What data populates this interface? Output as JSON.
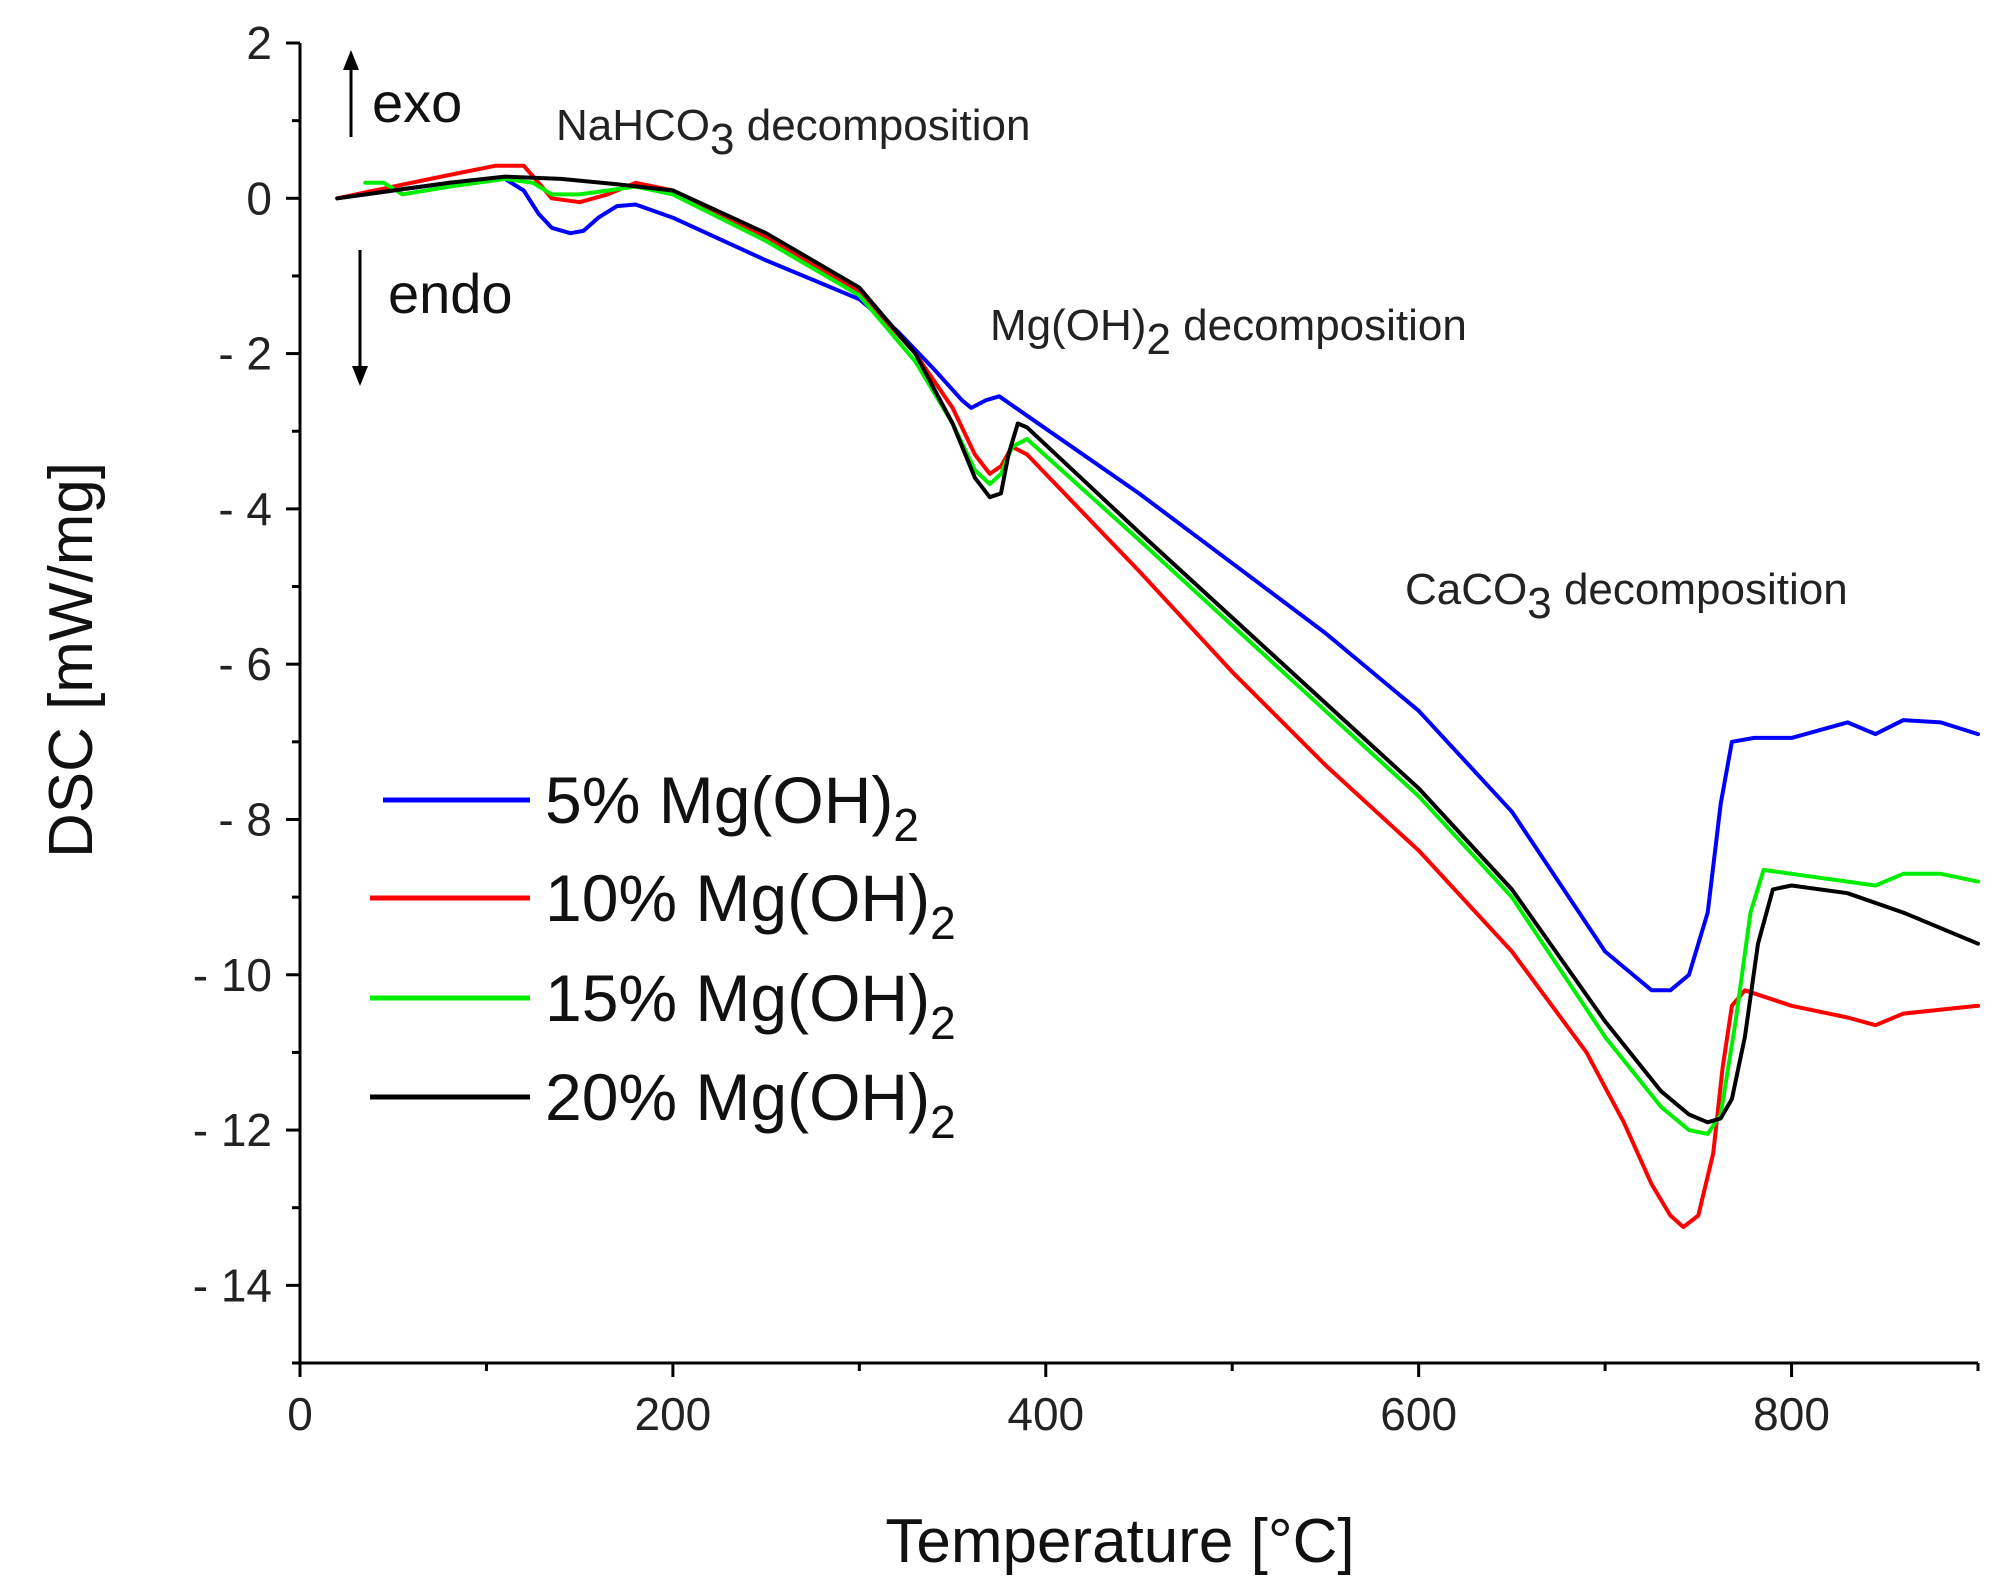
{
  "chart_data": {
    "type": "line",
    "xlabel": "Temperature [°C]",
    "ylabel": "DSC [mW/mg]",
    "xlim": [
      0,
      900
    ],
    "ylim": [
      -15,
      2
    ],
    "xticks": [
      0,
      200,
      400,
      600,
      800
    ],
    "yticks": [
      2,
      0,
      -2,
      -4,
      -6,
      -8,
      -10,
      -12,
      -14
    ],
    "xtick_labels": [
      "0",
      "200",
      "400",
      "600",
      "800"
    ],
    "ytick_labels": [
      "2",
      "0",
      "- 2",
      "- 4",
      "- 6",
      "- 8",
      "- 10",
      "- 12",
      "- 14"
    ],
    "grid": false,
    "legend_position": "bottom-left",
    "series": [
      {
        "name": "5% Mg(OH)2",
        "legend_label": "5% Mg(OH)",
        "legend_sub": "2",
        "color": "#0000ff",
        "x": [
          20,
          50,
          80,
          110,
          120,
          128,
          135,
          145,
          152,
          160,
          170,
          180,
          200,
          250,
          300,
          320,
          340,
          355,
          360,
          368,
          375,
          390,
          450,
          500,
          550,
          600,
          650,
          700,
          725,
          735,
          745,
          755,
          762,
          768,
          780,
          800,
          830,
          845,
          860,
          880,
          900
        ],
        "y": [
          0,
          0.1,
          0.2,
          0.25,
          0.1,
          -0.2,
          -0.38,
          -0.45,
          -0.42,
          -0.25,
          -0.1,
          -0.08,
          -0.25,
          -0.8,
          -1.3,
          -1.7,
          -2.2,
          -2.6,
          -2.7,
          -2.6,
          -2.55,
          -2.8,
          -3.8,
          -4.7,
          -5.6,
          -6.6,
          -7.9,
          -9.7,
          -10.2,
          -10.2,
          -10.0,
          -9.2,
          -7.8,
          -7.0,
          -6.95,
          -6.95,
          -6.75,
          -6.9,
          -6.72,
          -6.75,
          -6.9
        ]
      },
      {
        "name": "10% Mg(OH)2",
        "legend_label": "10% Mg(OH)",
        "legend_sub": "2",
        "color": "#ff0000",
        "x": [
          20,
          50,
          80,
          105,
          120,
          128,
          135,
          150,
          165,
          180,
          200,
          250,
          300,
          330,
          350,
          362,
          370,
          376,
          382,
          390,
          450,
          500,
          550,
          600,
          650,
          690,
          710,
          725,
          735,
          742,
          750,
          758,
          763,
          768,
          775,
          800,
          830,
          845,
          860,
          900
        ],
        "y": [
          0,
          0.15,
          0.3,
          0.42,
          0.42,
          0.2,
          0.0,
          -0.05,
          0.05,
          0.2,
          0.1,
          -0.5,
          -1.2,
          -2.0,
          -2.7,
          -3.3,
          -3.55,
          -3.45,
          -3.2,
          -3.3,
          -4.8,
          -6.1,
          -7.3,
          -8.4,
          -9.7,
          -11.0,
          -11.9,
          -12.7,
          -13.1,
          -13.25,
          -13.1,
          -12.3,
          -11.2,
          -10.4,
          -10.2,
          -10.4,
          -10.55,
          -10.65,
          -10.5,
          -10.4
        ]
      },
      {
        "name": "15% Mg(OH)2",
        "legend_label": "15% Mg(OH)",
        "legend_sub": "2",
        "color": "#00ee00",
        "x": [
          35,
          45,
          55,
          80,
          110,
          125,
          135,
          150,
          165,
          180,
          200,
          250,
          300,
          330,
          350,
          362,
          370,
          376,
          382,
          390,
          450,
          500,
          550,
          600,
          650,
          700,
          730,
          745,
          755,
          762,
          770,
          778,
          785,
          800,
          830,
          845,
          860,
          880,
          900
        ],
        "y": [
          0.2,
          0.2,
          0.05,
          0.15,
          0.25,
          0.2,
          0.05,
          0.05,
          0.1,
          0.15,
          0.05,
          -0.55,
          -1.25,
          -2.1,
          -2.9,
          -3.5,
          -3.68,
          -3.55,
          -3.2,
          -3.1,
          -4.4,
          -5.5,
          -6.6,
          -7.7,
          -9.0,
          -10.8,
          -11.7,
          -12.0,
          -12.05,
          -11.8,
          -10.6,
          -9.2,
          -8.65,
          -8.7,
          -8.8,
          -8.85,
          -8.7,
          -8.7,
          -8.8
        ]
      },
      {
        "name": "20% Mg(OH)2",
        "legend_label": "20% Mg(OH)",
        "legend_sub": "2",
        "color": "#000000",
        "x": [
          20,
          50,
          80,
          110,
          140,
          170,
          200,
          250,
          300,
          330,
          350,
          362,
          370,
          376,
          380,
          385,
          390,
          450,
          500,
          550,
          600,
          650,
          700,
          730,
          745,
          755,
          762,
          768,
          775,
          782,
          790,
          800,
          830,
          860,
          900
        ],
        "y": [
          0,
          0.1,
          0.2,
          0.28,
          0.25,
          0.18,
          0.1,
          -0.45,
          -1.15,
          -2.0,
          -2.9,
          -3.6,
          -3.85,
          -3.8,
          -3.3,
          -2.9,
          -2.95,
          -4.3,
          -5.4,
          -6.5,
          -7.6,
          -8.9,
          -10.6,
          -11.5,
          -11.8,
          -11.9,
          -11.85,
          -11.6,
          -10.8,
          -9.6,
          -8.9,
          -8.85,
          -8.95,
          -9.2,
          -9.6
        ]
      }
    ],
    "annotations": {
      "exo": "exo",
      "endo": "endo",
      "nahco3_main": "NaHCO",
      "nahco3_sub": "3",
      "nahco3_rest": " decomposition",
      "mgoh2_main": "Mg(OH)",
      "mgoh2_sub": "2",
      "mgoh2_rest": " decomposition",
      "caco3_main": "CaCO",
      "caco3_sub": "3",
      "caco3_rest": " decomposition"
    }
  }
}
